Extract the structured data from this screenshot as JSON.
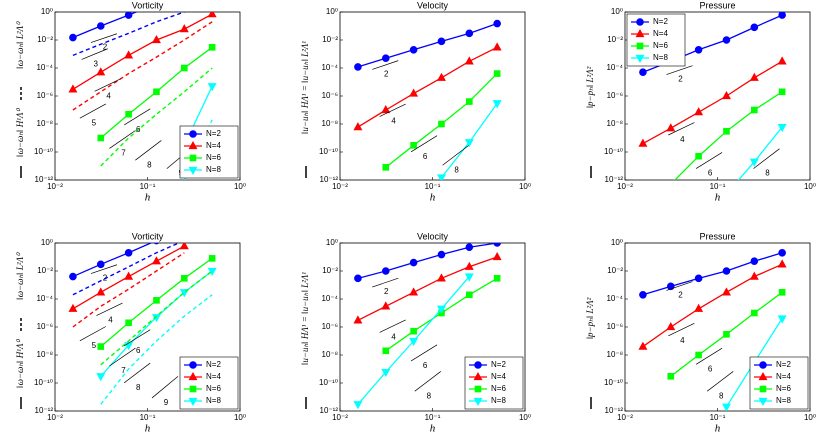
{
  "chart_data": [
    {
      "type": "line",
      "title": "Vorticity",
      "xlabel": "h",
      "ylabel": "‖ω−ωₕ‖ H¹Λ⁰",
      "ylabel_dashed": "‖ω−ωₕ‖ L²Λ⁰",
      "log": true,
      "legend": "lower right",
      "x": [
        0.015625,
        0.03125,
        0.0625,
        0.125,
        0.25,
        0.5
      ],
      "xlim": [
        0.01,
        1
      ],
      "ylim": [
        1e-12,
        1
      ],
      "xticks": [
        {
          "value": 0.01,
          "label": "10⁻²"
        },
        {
          "value": 0.1,
          "label": "10⁻¹"
        },
        {
          "value": 1,
          "label": "10⁰"
        }
      ],
      "yticks": [
        {
          "value": 1e-12,
          "label": "10⁻¹²"
        },
        {
          "value": 1e-10,
          "label": "10⁻¹⁰"
        },
        {
          "value": 1e-08,
          "label": "10⁻⁸"
        },
        {
          "value": 1e-06,
          "label": "10⁻⁶"
        },
        {
          "value": 0.0001,
          "label": "10⁻⁴"
        },
        {
          "value": 0.01,
          "label": "10⁻²"
        },
        {
          "value": 1,
          "label": "10⁰"
        }
      ],
      "slopes": [
        2,
        3,
        4,
        5,
        6,
        7,
        8,
        9
      ],
      "series": [
        {
          "name": "N=2",
          "color": "#0000ff",
          "marker": "circle",
          "values": [
            0.015,
            0.1,
            0.6,
            4,
            null,
            null
          ]
        },
        {
          "name": "N=4",
          "color": "#ff0000",
          "marker": "triangle-up",
          "values": [
            3e-06,
            5e-05,
            0.0008,
            0.01,
            0.06,
            0.7
          ]
        },
        {
          "name": "N=6",
          "color": "#00ff00",
          "marker": "square",
          "values": [
            null,
            1e-09,
            5e-08,
            2e-06,
            0.0001,
            0.003
          ]
        },
        {
          "name": "N=8",
          "color": "#00ffff",
          "marker": "triangle-down",
          "values": [
            null,
            null,
            null,
            null,
            3e-10,
            5e-06
          ]
        },
        {
          "color": "#0000ff",
          "dashed": true,
          "values": [
            0.0008,
            0.005,
            0.03,
            0.2,
            1,
            null
          ]
        },
        {
          "color": "#ff0000",
          "dashed": true,
          "values": [
            1e-07,
            2e-06,
            4e-05,
            0.0006,
            0.01,
            0.2
          ]
        },
        {
          "color": "#00ff00",
          "dashed": true,
          "values": [
            null,
            1e-11,
            1e-09,
            5e-08,
            2e-06,
            0.0001
          ]
        },
        {
          "color": "#00ffff",
          "dashed": true,
          "values": [
            null,
            null,
            null,
            null,
            1e-12,
            2e-08
          ]
        }
      ]
    },
    {
      "type": "line",
      "title": "Velocity",
      "xlabel": "h",
      "ylabel": "‖u−uₕ‖ HΛ¹ = ‖u−uₕ‖ L²Λ¹",
      "log": true,
      "legend": "none",
      "x": [
        0.015625,
        0.03125,
        0.0625,
        0.125,
        0.25,
        0.5
      ],
      "xlim": [
        0.01,
        1
      ],
      "ylim": [
        1e-12,
        1
      ],
      "xticks": [
        {
          "value": 0.01,
          "label": "10⁻²"
        },
        {
          "value": 0.1,
          "label": "10⁻¹"
        },
        {
          "value": 1,
          "label": "10⁰"
        }
      ],
      "yticks": [
        {
          "value": 1e-12,
          "label": "10⁻¹²"
        },
        {
          "value": 1e-10,
          "label": "10⁻¹⁰"
        },
        {
          "value": 1e-08,
          "label": "10⁻⁸"
        },
        {
          "value": 1e-06,
          "label": "10⁻⁶"
        },
        {
          "value": 0.0001,
          "label": "10⁻⁴"
        },
        {
          "value": 0.01,
          "label": "10⁻²"
        },
        {
          "value": 1,
          "label": "10⁰"
        }
      ],
      "slopes": [
        2,
        4,
        6,
        8
      ],
      "series": [
        {
          "name": "N=2",
          "color": "#0000ff",
          "marker": "circle",
          "values": [
            0.00012,
            0.0005,
            0.002,
            0.008,
            0.03,
            0.15
          ]
        },
        {
          "name": "N=4",
          "color": "#ff0000",
          "marker": "triangle-up",
          "values": [
            6e-09,
            1e-07,
            1.5e-06,
            2e-05,
            0.0003,
            0.003
          ]
        },
        {
          "name": "N=6",
          "color": "#00ff00",
          "marker": "square",
          "values": [
            null,
            8e-12,
            3e-10,
            1e-08,
            4e-07,
            4e-05
          ]
        },
        {
          "name": "N=8",
          "color": "#00ffff",
          "marker": "triangle-down",
          "values": [
            null,
            null,
            null,
            1.5e-12,
            5e-10,
            3e-07
          ]
        }
      ]
    },
    {
      "type": "line",
      "title": "Pressure",
      "xlabel": "h",
      "ylabel": "‖p−pₕ‖ L²Λ²",
      "log": true,
      "legend": "upper left",
      "x": [
        0.015625,
        0.03125,
        0.0625,
        0.125,
        0.25,
        0.5
      ],
      "xlim": [
        0.01,
        1
      ],
      "ylim": [
        1e-12,
        1
      ],
      "xticks": [
        {
          "value": 0.01,
          "label": "10⁻²"
        },
        {
          "value": 0.1,
          "label": "10⁻¹"
        },
        {
          "value": 1,
          "label": "10⁰"
        }
      ],
      "yticks": [
        {
          "value": 1e-12,
          "label": "10⁻¹²"
        },
        {
          "value": 1e-10,
          "label": "10⁻¹⁰"
        },
        {
          "value": 1e-08,
          "label": "10⁻⁸"
        },
        {
          "value": 1e-06,
          "label": "10⁻⁶"
        },
        {
          "value": 0.0001,
          "label": "10⁻⁴"
        },
        {
          "value": 0.01,
          "label": "10⁻²"
        },
        {
          "value": 1,
          "label": "10⁰"
        }
      ],
      "slopes": [
        2,
        4,
        6,
        8
      ],
      "series": [
        {
          "name": "N=2",
          "color": "#0000ff",
          "marker": "circle",
          "values": [
            5e-05,
            0.0003,
            0.002,
            0.01,
            0.08,
            0.6
          ]
        },
        {
          "name": "N=4",
          "color": "#ff0000",
          "marker": "triangle-up",
          "values": [
            4e-10,
            5e-09,
            7e-08,
            1e-06,
            2e-05,
            0.0003
          ]
        },
        {
          "name": "N=6",
          "color": "#00ff00",
          "marker": "square",
          "values": [
            null,
            5e-13,
            5e-11,
            3e-09,
            1e-07,
            2e-06
          ]
        },
        {
          "name": "N=8",
          "color": "#00ffff",
          "marker": "triangle-down",
          "values": [
            null,
            null,
            null,
            1e-13,
            2e-11,
            6e-09
          ]
        }
      ]
    },
    {
      "type": "line",
      "title": "Vorticity",
      "xlabel": "h",
      "ylabel": "‖ω−ωₕ‖ H¹Λ⁰",
      "ylabel_dashed": "‖ω−ωₕ‖ L²Λ⁰",
      "log": true,
      "legend": "lower right",
      "x": [
        0.015625,
        0.03125,
        0.0625,
        0.125,
        0.25,
        0.5
      ],
      "xlim": [
        0.01,
        1
      ],
      "ylim": [
        1e-12,
        1
      ],
      "xticks": [
        {
          "value": 0.01,
          "label": "10⁻²"
        },
        {
          "value": 0.1,
          "label": "10⁻¹"
        },
        {
          "value": 1,
          "label": "10⁰"
        }
      ],
      "yticks": [
        {
          "value": 1e-12,
          "label": "10⁻¹²"
        },
        {
          "value": 1e-10,
          "label": "10⁻¹⁰"
        },
        {
          "value": 1e-08,
          "label": "10⁻⁸"
        },
        {
          "value": 1e-06,
          "label": "10⁻⁶"
        },
        {
          "value": 0.0001,
          "label": "10⁻⁴"
        },
        {
          "value": 0.01,
          "label": "10⁻²"
        },
        {
          "value": 1,
          "label": "10⁰"
        }
      ],
      "slopes": [
        2,
        4,
        5,
        6,
        7,
        8,
        9
      ],
      "series": [
        {
          "name": "N=2",
          "color": "#0000ff",
          "marker": "circle",
          "values": [
            0.004,
            0.03,
            0.2,
            1.5,
            null,
            null
          ]
        },
        {
          "name": "N=4",
          "color": "#ff0000",
          "marker": "triangle-up",
          "values": [
            2e-05,
            0.0003,
            0.004,
            0.05,
            0.6,
            null
          ]
        },
        {
          "name": "N=6",
          "color": "#00ff00",
          "marker": "square",
          "values": [
            null,
            4e-08,
            2e-06,
            8e-05,
            0.003,
            0.08
          ]
        },
        {
          "name": "N=8",
          "color": "#00ffff",
          "marker": "triangle-down",
          "values": [
            null,
            3e-10,
            5e-08,
            5e-06,
            0.0003,
            0.01
          ]
        },
        {
          "color": "#0000ff",
          "dashed": true,
          "values": [
            0.0002,
            0.002,
            0.02,
            0.2,
            1.5,
            null
          ]
        },
        {
          "color": "#ff0000",
          "dashed": true,
          "values": [
            1e-06,
            3e-05,
            0.0005,
            0.01,
            0.2,
            null
          ]
        },
        {
          "color": "#00ff00",
          "dashed": true,
          "values": [
            null,
            2e-09,
            1e-07,
            6e-06,
            0.0003,
            0.01
          ]
        },
        {
          "color": "#00ffff",
          "dashed": true,
          "values": [
            null,
            3e-12,
            1e-09,
            1e-07,
            6e-06,
            0.0002
          ]
        }
      ]
    },
    {
      "type": "line",
      "title": "Velocity",
      "xlabel": "h",
      "ylabel": "‖u−uₕ‖ HΛ¹ = ‖u−uₕ‖ L²Λ¹",
      "log": true,
      "legend": "lower right",
      "x": [
        0.015625,
        0.03125,
        0.0625,
        0.125,
        0.25,
        0.5
      ],
      "xlim": [
        0.01,
        1
      ],
      "ylim": [
        1e-12,
        1
      ],
      "xticks": [
        {
          "value": 0.01,
          "label": "10⁻²"
        },
        {
          "value": 0.1,
          "label": "10⁻¹"
        },
        {
          "value": 1,
          "label": "10⁰"
        }
      ],
      "yticks": [
        {
          "value": 1e-12,
          "label": "10⁻¹²"
        },
        {
          "value": 1e-10,
          "label": "10⁻¹⁰"
        },
        {
          "value": 1e-08,
          "label": "10⁻⁸"
        },
        {
          "value": 1e-06,
          "label": "10⁻⁶"
        },
        {
          "value": 0.0001,
          "label": "10⁻⁴"
        },
        {
          "value": 0.01,
          "label": "10⁻²"
        },
        {
          "value": 1,
          "label": "10⁰"
        }
      ],
      "slopes": [
        2,
        4,
        6,
        8
      ],
      "series": [
        {
          "name": "N=2",
          "color": "#0000ff",
          "marker": "circle",
          "values": [
            0.003,
            0.01,
            0.04,
            0.15,
            0.5,
            1
          ]
        },
        {
          "name": "N=4",
          "color": "#ff0000",
          "marker": "triangle-up",
          "values": [
            3e-06,
            3e-05,
            0.0003,
            0.003,
            0.02,
            0.1
          ]
        },
        {
          "name": "N=6",
          "color": "#00ff00",
          "marker": "square",
          "values": [
            null,
            2e-08,
            5e-07,
            1e-05,
            0.0002,
            0.003
          ]
        },
        {
          "name": "N=8",
          "color": "#00ffff",
          "marker": "triangle-down",
          "values": [
            3e-12,
            6e-10,
            1e-07,
            2e-05,
            0.004,
            null
          ]
        }
      ]
    },
    {
      "type": "line",
      "title": "Pressure",
      "xlabel": "h",
      "ylabel": "‖p−pₕ‖ L²Λ²",
      "log": true,
      "legend": "lower right",
      "x": [
        0.015625,
        0.03125,
        0.0625,
        0.125,
        0.25,
        0.5
      ],
      "xlim": [
        0.01,
        1
      ],
      "ylim": [
        1e-12,
        1
      ],
      "xticks": [
        {
          "value": 0.01,
          "label": "10⁻²"
        },
        {
          "value": 0.1,
          "label": "10⁻¹"
        },
        {
          "value": 1,
          "label": "10⁰"
        }
      ],
      "yticks": [
        {
          "value": 1e-12,
          "label": "10⁻¹²"
        },
        {
          "value": 1e-10,
          "label": "10⁻¹⁰"
        },
        {
          "value": 1e-08,
          "label": "10⁻⁸"
        },
        {
          "value": 1e-06,
          "label": "10⁻⁶"
        },
        {
          "value": 0.0001,
          "label": "10⁻⁴"
        },
        {
          "value": 0.01,
          "label": "10⁻²"
        },
        {
          "value": 1,
          "label": "10⁰"
        }
      ],
      "slopes": [
        2,
        4,
        6,
        8
      ],
      "series": [
        {
          "name": "N=2",
          "color": "#0000ff",
          "marker": "circle",
          "values": [
            0.0002,
            0.0008,
            0.003,
            0.01,
            0.05,
            0.2
          ]
        },
        {
          "name": "N=4",
          "color": "#ff0000",
          "marker": "triangle-up",
          "values": [
            4e-08,
            1e-06,
            2e-05,
            0.0003,
            0.004,
            0.03
          ]
        },
        {
          "name": "N=6",
          "color": "#00ff00",
          "marker": "square",
          "values": [
            null,
            3e-10,
            1e-08,
            3e-07,
            1e-05,
            0.0003
          ]
        },
        {
          "name": "N=8",
          "color": "#00ffff",
          "marker": "triangle-down",
          "values": [
            null,
            null,
            null,
            2e-12,
            3e-09,
            4e-06
          ]
        }
      ]
    }
  ]
}
